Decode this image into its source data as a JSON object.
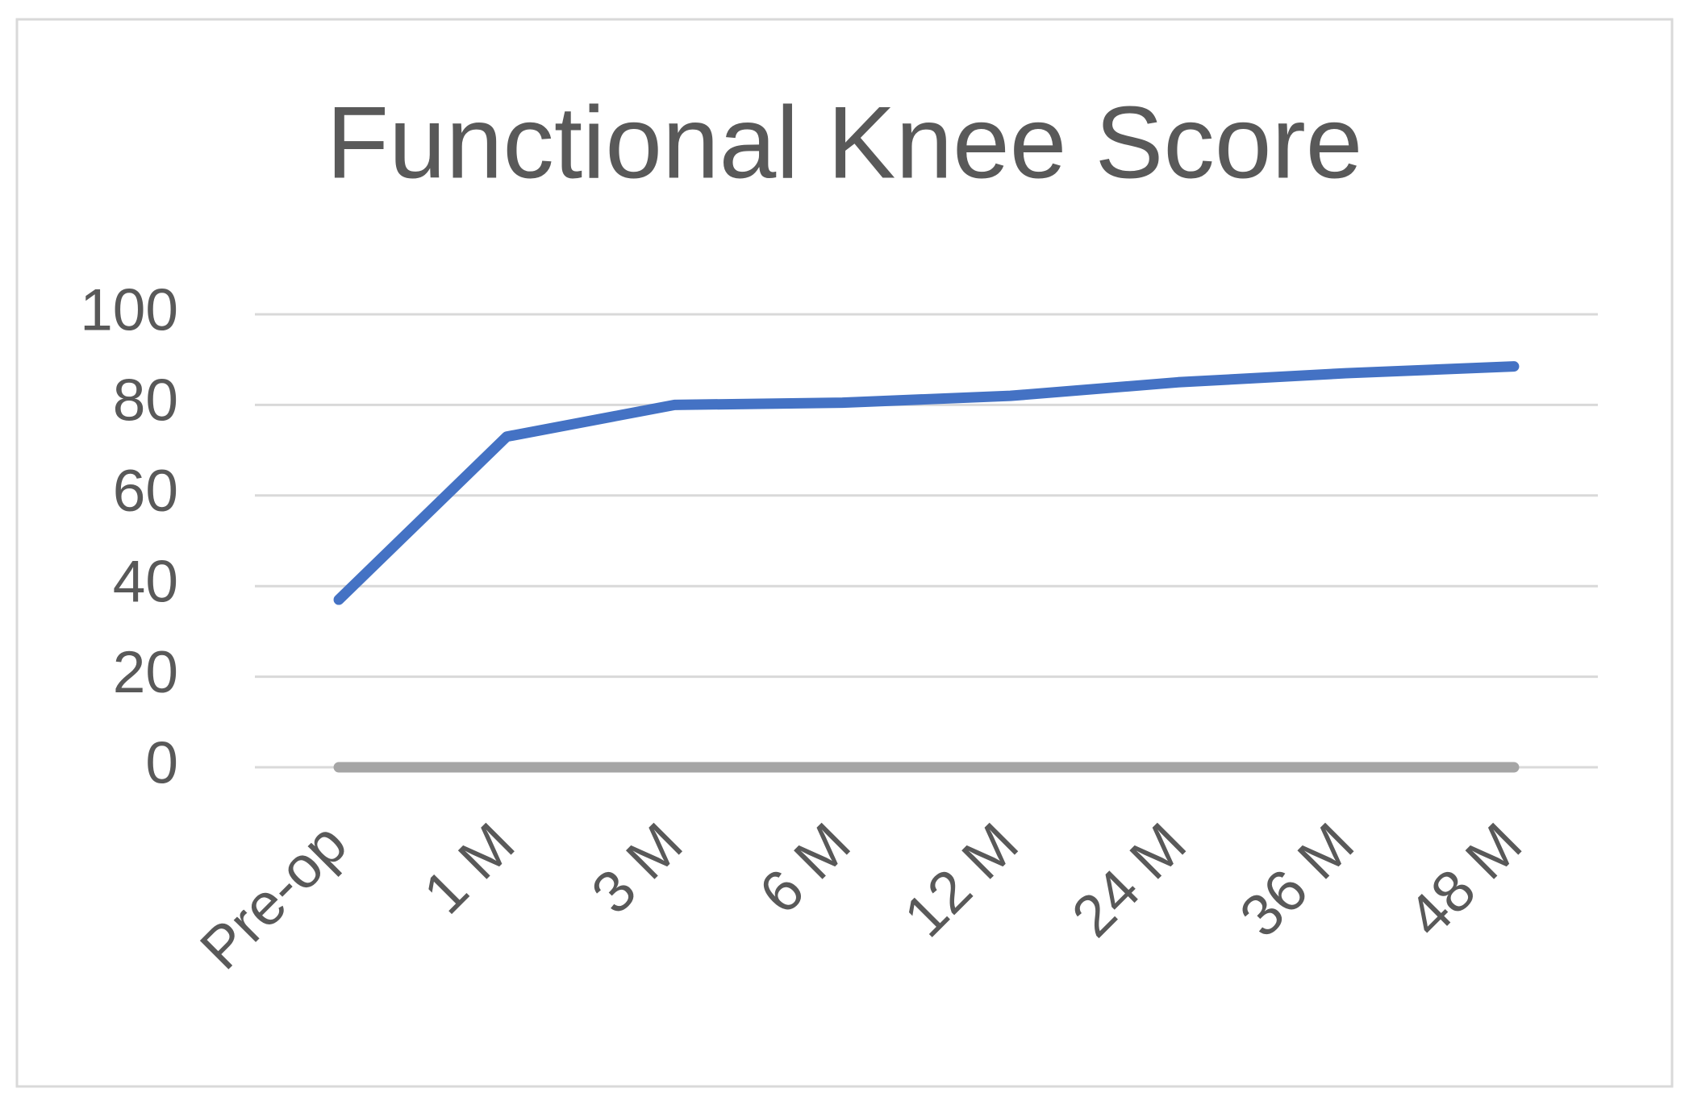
{
  "chart_data": {
    "type": "line",
    "title": "Functional Knee Score",
    "categories": [
      "Pre-op",
      "1 M",
      "3 M",
      "6 M",
      "12 M",
      "24 M",
      "36 M",
      "48 M"
    ],
    "series": [
      {
        "color": "#4472c4",
        "values": [
          37,
          73,
          80,
          80.5,
          82,
          85,
          87,
          88.5
        ]
      },
      {
        "color": "#a5a5a5",
        "values": [
          0,
          0,
          0,
          0,
          0,
          0,
          0,
          0
        ]
      }
    ],
    "ylim": [
      0,
      100
    ],
    "yticks": [
      0,
      20,
      40,
      60,
      80,
      100
    ],
    "grid": true
  }
}
